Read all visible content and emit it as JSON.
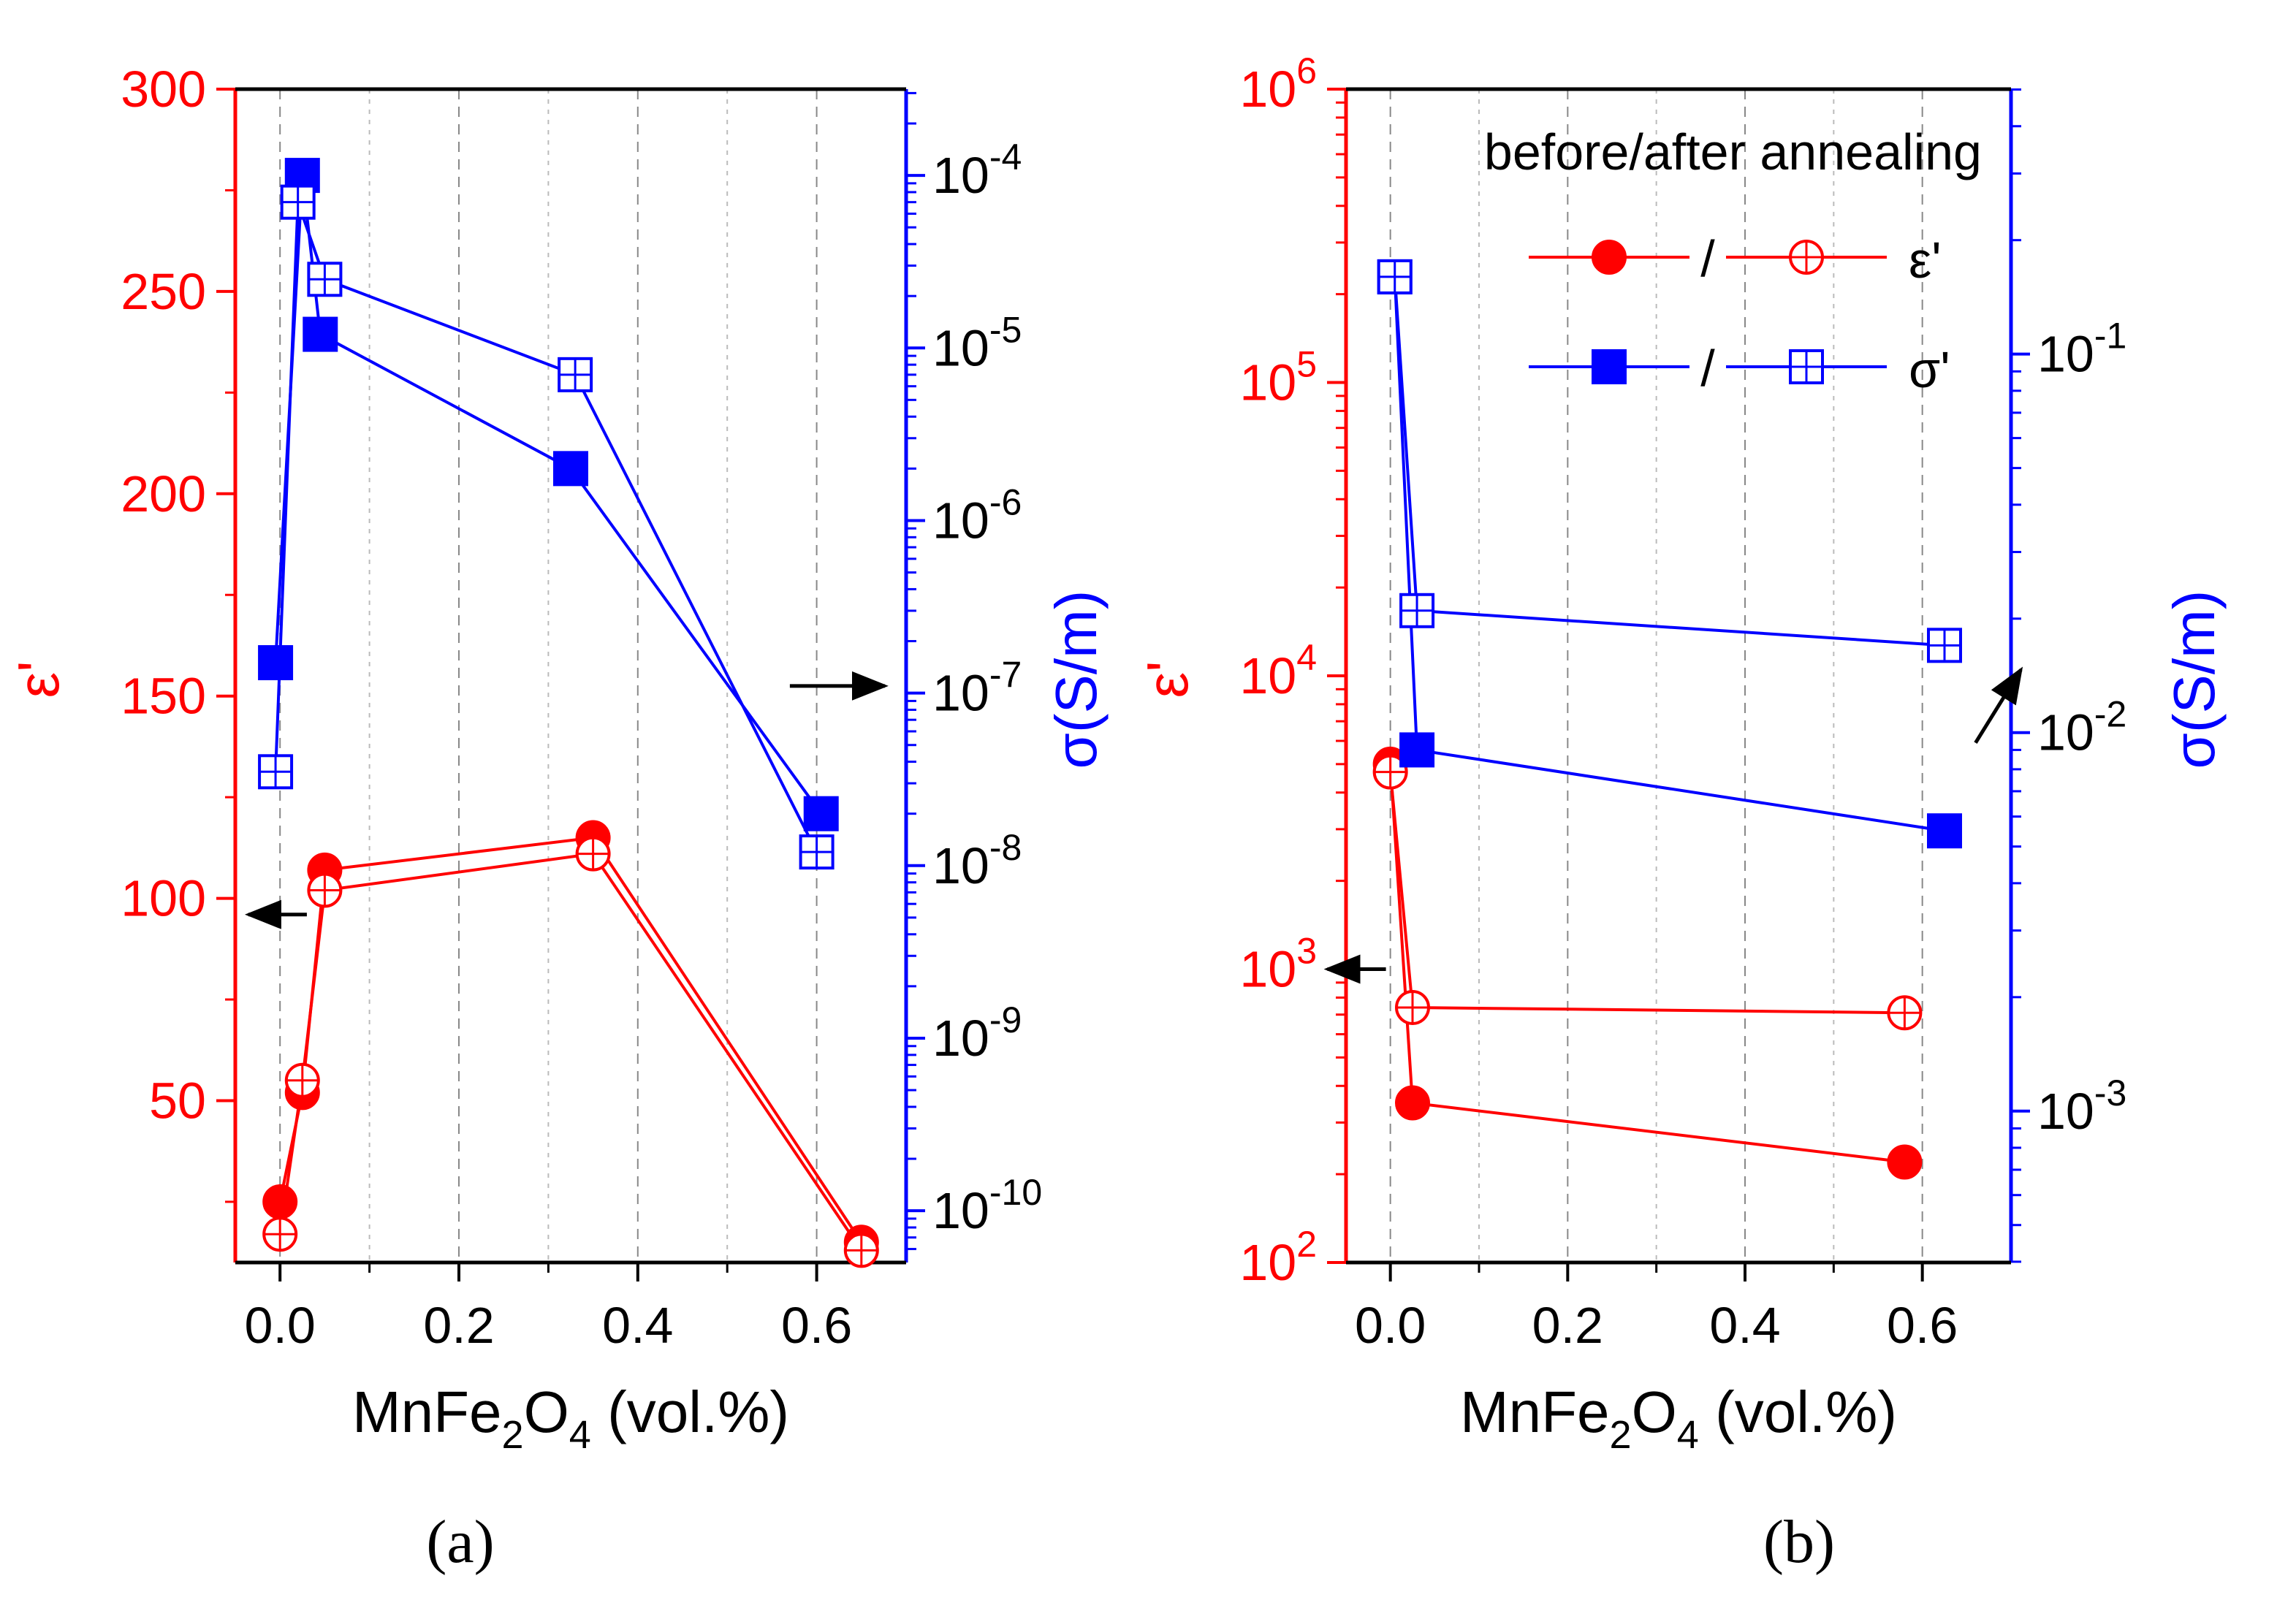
{
  "chart_data": [
    {
      "panel": "a",
      "panel_label": "(a)",
      "type": "line",
      "xlabel_main": "MnFe",
      "xlabel_sub1": "2",
      "xlabel_mid": "O",
      "xlabel_sub2": "4",
      "xlabel_end": " (vol.%)",
      "xlim": [
        -0.05,
        0.7
      ],
      "xticks": [
        {
          "v": 0.0,
          "label": "0.0"
        },
        {
          "v": 0.2,
          "label": "0.2"
        },
        {
          "v": 0.4,
          "label": "0.4"
        },
        {
          "v": 0.6,
          "label": "0.6"
        }
      ],
      "left_axis": {
        "scale": "linear",
        "ylim": [
          10,
          300
        ],
        "color": "#ff0000",
        "label": "ε'",
        "ticks": [
          {
            "v": 50,
            "label": "50"
          },
          {
            "v": 100,
            "label": "100"
          },
          {
            "v": 150,
            "label": "150"
          },
          {
            "v": 200,
            "label": "200"
          },
          {
            "v": 250,
            "label": "250"
          },
          {
            "v": 300,
            "label": "300"
          }
        ]
      },
      "right_axis": {
        "scale": "log",
        "ylim_exp": [
          -10.3,
          -3.5
        ],
        "color": "#0000ff",
        "label": "σ(S/m)",
        "ticks": [
          {
            "exp": -10,
            "base": "10",
            "sup": "-10"
          },
          {
            "exp": -9,
            "base": "10",
            "sup": "-9"
          },
          {
            "exp": -8,
            "base": "10",
            "sup": "-8"
          },
          {
            "exp": -7,
            "base": "10",
            "sup": "-7"
          },
          {
            "exp": -6,
            "base": "10",
            "sup": "-6"
          },
          {
            "exp": -5,
            "base": "10",
            "sup": "-5"
          },
          {
            "exp": -4,
            "base": "10",
            "sup": "-4"
          }
        ]
      },
      "series": [
        {
          "name": "ε' before annealing",
          "axis": "left",
          "marker": "circle-filled",
          "color": "#ff0000",
          "x": [
            0.0,
            0.025,
            0.05,
            0.35,
            0.65
          ],
          "y": [
            25,
            52,
            107,
            115,
            15
          ]
        },
        {
          "name": "ε' after annealing",
          "axis": "left",
          "marker": "circle-cross",
          "color": "#ff0000",
          "x": [
            0.0,
            0.025,
            0.05,
            0.35,
            0.65
          ],
          "y": [
            17,
            55,
            102,
            111,
            13
          ]
        },
        {
          "name": "σ' before annealing",
          "axis": "right",
          "marker": "square-filled",
          "color": "#0000ff",
          "x": [
            -0.005,
            0.025,
            0.045,
            0.325,
            0.605
          ],
          "y": [
            1.5e-07,
            0.0001,
            1.2e-05,
            2e-06,
            2e-08
          ]
        },
        {
          "name": "σ' after annealing",
          "axis": "right",
          "marker": "square-cross",
          "color": "#0000ff",
          "x": [
            -0.005,
            0.02,
            0.05,
            0.33,
            0.6
          ],
          "y": [
            3.5e-08,
            7e-05,
            2.5e-05,
            7e-06,
            1.2e-08
          ]
        }
      ],
      "arrows": [
        {
          "dir": "left",
          "target_axis": "left",
          "x": 0.03,
          "y": 96
        },
        {
          "dir": "right",
          "target_axis": "right",
          "x": 0.57,
          "y": 1.1e-07
        }
      ]
    },
    {
      "panel": "b",
      "panel_label": "(b)",
      "type": "line",
      "xlabel_main": "MnFe",
      "xlabel_sub1": "2",
      "xlabel_mid": "O",
      "xlabel_sub2": "4",
      "xlabel_end": " (vol.%)",
      "xlim": [
        -0.05,
        0.7
      ],
      "xticks": [
        {
          "v": 0.0,
          "label": "0.0"
        },
        {
          "v": 0.2,
          "label": "0.2"
        },
        {
          "v": 0.4,
          "label": "0.4"
        },
        {
          "v": 0.6,
          "label": "0.6"
        }
      ],
      "left_axis": {
        "scale": "log",
        "ylim_exp": [
          2,
          6
        ],
        "color": "#ff0000",
        "label": "ε'",
        "ticks": [
          {
            "exp": 2,
            "base": "10",
            "sup": "2"
          },
          {
            "exp": 3,
            "base": "10",
            "sup": "3"
          },
          {
            "exp": 4,
            "base": "10",
            "sup": "4"
          },
          {
            "exp": 5,
            "base": "10",
            "sup": "5"
          },
          {
            "exp": 6,
            "base": "10",
            "sup": "6"
          }
        ]
      },
      "right_axis": {
        "scale": "log",
        "ylim_exp": [
          -3.4,
          -0.3
        ],
        "color": "#0000ff",
        "label": "σ(S/m)",
        "ticks": [
          {
            "exp": -3,
            "base": "10",
            "sup": "-3"
          },
          {
            "exp": -2,
            "base": "10",
            "sup": "-2"
          },
          {
            "exp": -1,
            "base": "10",
            "sup": "-1"
          }
        ]
      },
      "series": [
        {
          "name": "ε' before annealing",
          "axis": "left",
          "marker": "circle-filled",
          "color": "#ff0000",
          "x": [
            0.0,
            0.025,
            0.58
          ],
          "y": [
            5000,
            350,
            220
          ]
        },
        {
          "name": "ε' after annealing",
          "axis": "left",
          "marker": "circle-cross",
          "color": "#ff0000",
          "x": [
            0.0,
            0.025,
            0.58
          ],
          "y": [
            4700,
            740,
            710
          ]
        },
        {
          "name": "σ' before annealing",
          "axis": "right",
          "marker": "square-filled",
          "color": "#0000ff",
          "x": [
            0.005,
            0.03,
            0.625
          ],
          "y": [
            0.16,
            0.009,
            0.0055
          ]
        },
        {
          "name": "σ' after annealing",
          "axis": "right",
          "marker": "square-cross",
          "color": "#0000ff",
          "x": [
            0.005,
            0.03,
            0.625
          ],
          "y": [
            0.16,
            0.021,
            0.017
          ]
        }
      ],
      "legend": {
        "title": "before/after annealing",
        "placement": "top-right",
        "entries": [
          {
            "sep": "/",
            "label": "ε'",
            "color": "#ff0000",
            "markers": [
              "circle-filled",
              "circle-cross"
            ]
          },
          {
            "sep": "/",
            "label": "σ'",
            "color": "#0000ff",
            "markers": [
              "square-filled",
              "square-cross"
            ]
          }
        ]
      },
      "arrows": [
        {
          "dir": "left",
          "target_axis": "left",
          "x": -0.005,
          "y": 1000
        },
        {
          "dir": "up-right",
          "target_axis": "right",
          "x": 0.66,
          "y": 0.012
        }
      ]
    }
  ]
}
